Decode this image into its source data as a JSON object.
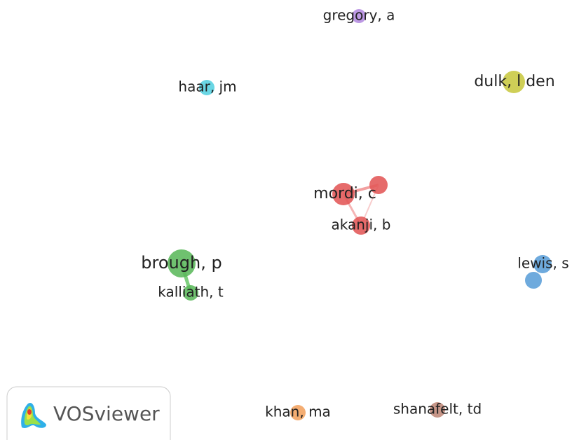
{
  "nodes": [
    {
      "label": "gregory, a"
    },
    {
      "label": "haar, jm"
    },
    {
      "label": "dulk, l den"
    },
    {
      "label": "mordi, c"
    },
    {
      "label": "akanji, b"
    },
    {
      "label": "brough, p"
    },
    {
      "label": "kalliath, t"
    },
    {
      "label": "lewis, s"
    },
    {
      "label": "khan, ma"
    },
    {
      "label": "shanafelt, td"
    }
  ],
  "logo": {
    "text": "VOSviewer"
  }
}
